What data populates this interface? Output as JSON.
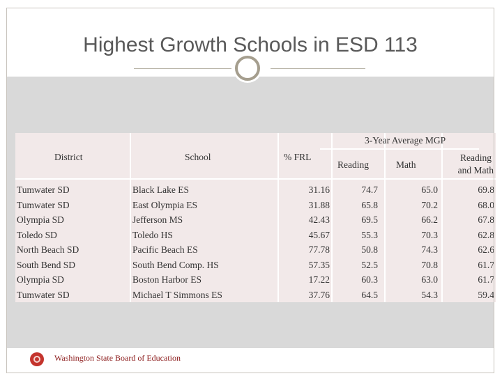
{
  "title": "Highest Growth Schools in ESD 113",
  "table": {
    "group_header": "3-Year Average MGP",
    "headers": {
      "district": "District",
      "school": "School",
      "frl": "% FRL",
      "reading": "Reading",
      "math": "Math",
      "reading_math_1": "Reading",
      "reading_math_2": "and Math"
    },
    "rows": [
      {
        "district": "Tumwater SD",
        "school": "Black Lake ES",
        "frl": "31.16",
        "reading": "74.7",
        "math": "65.0",
        "reading_math": "69.8"
      },
      {
        "district": "Tumwater SD",
        "school": "East Olympia ES",
        "frl": "31.88",
        "reading": "65.8",
        "math": "70.2",
        "reading_math": "68.0"
      },
      {
        "district": "Olympia SD",
        "school": "Jefferson MS",
        "frl": "42.43",
        "reading": "69.5",
        "math": "66.2",
        "reading_math": "67.8"
      },
      {
        "district": "Toledo SD",
        "school": "Toledo HS",
        "frl": "45.67",
        "reading": "55.3",
        "math": "70.3",
        "reading_math": "62.8"
      },
      {
        "district": "North Beach SD",
        "school": "Pacific Beach ES",
        "frl": "77.78",
        "reading": "50.8",
        "math": "74.3",
        "reading_math": "62.6"
      },
      {
        "district": "South Bend SD",
        "school": "South Bend Comp. HS",
        "frl": "57.35",
        "reading": "52.5",
        "math": "70.8",
        "reading_math": "61.7"
      },
      {
        "district": "Olympia SD",
        "school": "Boston Harbor ES",
        "frl": "17.22",
        "reading": "60.3",
        "math": "63.0",
        "reading_math": "61.7"
      },
      {
        "district": "Tumwater SD",
        "school": "Michael T Simmons ES",
        "frl": "37.76",
        "reading": "64.5",
        "math": "54.3",
        "reading_math": "59.4"
      }
    ]
  },
  "footer": {
    "org_name": "Washington State Board of Education",
    "logo_icon": "sbe-seal-icon"
  },
  "colors": {
    "title_text": "#595959",
    "band": "#d9d9d9",
    "table_bg": "#f2e9e9",
    "accent": "#a59e8e",
    "footer_text": "#8b1a1a"
  }
}
